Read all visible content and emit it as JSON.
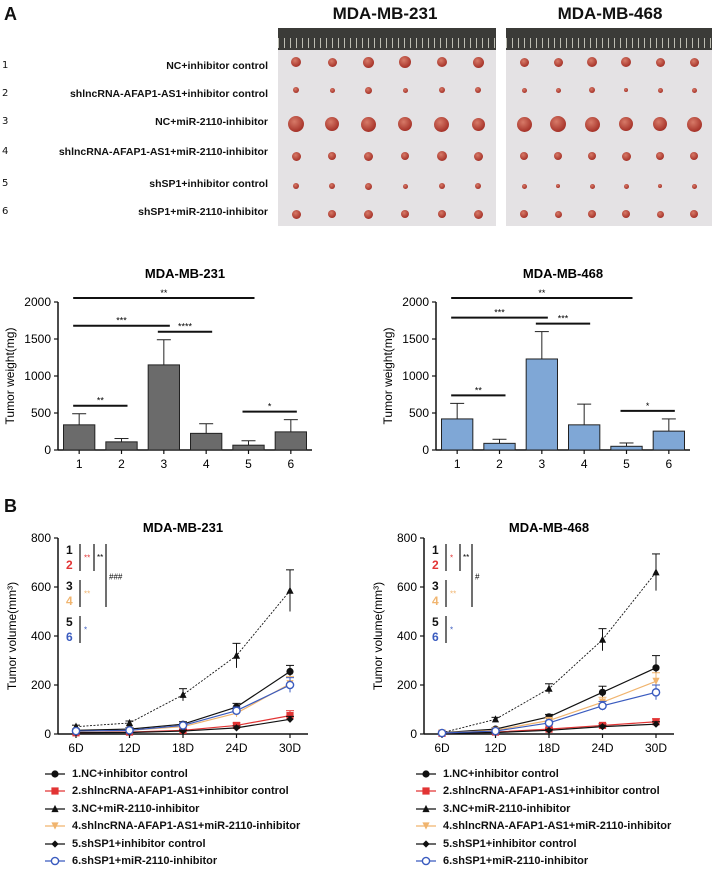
{
  "panel_a_label": "A",
  "panel_b_label": "B",
  "photos": {
    "mdamb231_title": "MDA-MB-231",
    "mdamb468_title": "MDA-MB-468"
  },
  "group_rows": [
    {
      "num": "1",
      "label": "NC+inhibitor control"
    },
    {
      "num": "2",
      "label": "shlncRNA-AFAP1-AS1+inhibitor control"
    },
    {
      "num": "3",
      "label": "NC+miR-2110-inhibitor"
    },
    {
      "num": "4",
      "label": "shlncRNA-AFAP1-AS1+miR-2110-inhibitor"
    },
    {
      "num": "5",
      "label": "shSP1+inhibitor control"
    },
    {
      "num": "6",
      "label": "shSP1+miR-2110-inhibitor"
    }
  ],
  "colors": {
    "bar_231": "#6b6b6b",
    "bar_468": "#7fa7d6",
    "series": [
      "#111111",
      "#e23434",
      "#111111",
      "#f0b46e",
      "#111111",
      "#3a5bbf"
    ]
  },
  "chart_data": [
    {
      "type": "bar",
      "title": "MDA-MB-231",
      "ylabel": "Tumor weight(mg)",
      "categories": [
        "1",
        "2",
        "3",
        "4",
        "5",
        "6"
      ],
      "values": [
        340,
        110,
        1150,
        225,
        65,
        245
      ],
      "errors": [
        150,
        45,
        340,
        130,
        60,
        165
      ],
      "ylim": [
        0,
        2000
      ],
      "yticks": [
        "0",
        "500",
        "1000",
        "1500",
        "2000"
      ],
      "annotations": [
        {
          "from": 1,
          "to": 2,
          "label": "**"
        },
        {
          "from": 1,
          "to": 3,
          "label": "***"
        },
        {
          "from": 3,
          "to": 4,
          "label": "****"
        },
        {
          "from": 5,
          "to": 6,
          "label": "*"
        },
        {
          "from": 1,
          "to": 5,
          "label": "**"
        }
      ]
    },
    {
      "type": "bar",
      "title": "MDA-MB-468",
      "ylabel": "Tumor weight(mg)",
      "categories": [
        "1",
        "2",
        "3",
        "4",
        "5",
        "6"
      ],
      "values": [
        420,
        90,
        1230,
        340,
        50,
        255
      ],
      "errors": [
        210,
        55,
        370,
        280,
        45,
        165
      ],
      "ylim": [
        0,
        2000
      ],
      "yticks": [
        "0",
        "500",
        "1000",
        "1500",
        "2000"
      ],
      "annotations": [
        {
          "from": 1,
          "to": 2,
          "label": "**"
        },
        {
          "from": 1,
          "to": 3,
          "label": "***"
        },
        {
          "from": 3,
          "to": 4,
          "label": "***"
        },
        {
          "from": 5,
          "to": 6,
          "label": "*"
        },
        {
          "from": 1,
          "to": 5,
          "label": "**"
        }
      ]
    },
    {
      "type": "line",
      "title": "MDA-MB-231",
      "ylabel": "Tumor volume(mm³)",
      "x": [
        "6D",
        "12D",
        "18D",
        "24D",
        "30D"
      ],
      "ylim": [
        0,
        800
      ],
      "yticks": [
        "0",
        "200",
        "400",
        "600",
        "800"
      ],
      "series": [
        {
          "name": "1.NC+inhibitor control",
          "values": [
            15,
            20,
            40,
            110,
            255
          ],
          "errors": [
            5,
            6,
            10,
            15,
            25
          ]
        },
        {
          "name": "2.shlncRNA-AFAP1-AS1+inhibitor control",
          "values": [
            5,
            8,
            15,
            35,
            75
          ],
          "errors": [
            3,
            3,
            5,
            10,
            20
          ]
        },
        {
          "name": "3.NC+miR-2110-inhibitor",
          "values": [
            30,
            45,
            160,
            320,
            585
          ],
          "errors": [
            6,
            8,
            25,
            50,
            85
          ]
        },
        {
          "name": "4.shlncRNA-AFAP1-AS1+miR-2110-inhibitor",
          "values": [
            10,
            15,
            30,
            85,
            205
          ],
          "errors": [
            4,
            5,
            8,
            15,
            30
          ]
        },
        {
          "name": "5.shSP1+inhibitor control",
          "values": [
            5,
            6,
            12,
            25,
            60
          ],
          "errors": [
            2,
            3,
            4,
            8,
            12
          ]
        },
        {
          "name": "6.shSP1+miR-2110-inhibitor",
          "values": [
            12,
            15,
            35,
            95,
            200
          ],
          "errors": [
            4,
            5,
            8,
            15,
            30
          ]
        }
      ],
      "markers": [
        "circle",
        "square",
        "triangle",
        "triangle-down",
        "diamond",
        "circle-open"
      ],
      "sig_groups": [
        "1",
        "2",
        "3",
        "4",
        "5",
        "6"
      ],
      "sig_labels": [
        "**",
        "**",
        "**",
        "*",
        "###"
      ]
    },
    {
      "type": "line",
      "title": "MDA-MB-468",
      "ylabel": "Tumor volume(mm³)",
      "x": [
        "6D",
        "12D",
        "18D",
        "24D",
        "30D"
      ],
      "ylim": [
        0,
        800
      ],
      "yticks": [
        "0",
        "200",
        "400",
        "600",
        "800"
      ],
      "series": [
        {
          "name": "1.NC+inhibitor control",
          "values": [
            5,
            20,
            70,
            170,
            270
          ],
          "errors": [
            3,
            5,
            10,
            25,
            50
          ]
        },
        {
          "name": "2.shlncRNA-AFAP1-AS1+inhibitor control",
          "values": [
            3,
            8,
            20,
            35,
            50
          ],
          "errors": [
            2,
            3,
            5,
            8,
            12
          ]
        },
        {
          "name": "3.NC+miR-2110-inhibitor",
          "values": [
            5,
            60,
            185,
            385,
            660
          ],
          "errors": [
            3,
            8,
            20,
            45,
            75
          ]
        },
        {
          "name": "4.shlncRNA-AFAP1-AS1+miR-2110-inhibitor",
          "values": [
            4,
            15,
            55,
            130,
            215
          ],
          "errors": [
            2,
            4,
            10,
            20,
            35
          ]
        },
        {
          "name": "5.shSP1+inhibitor control",
          "values": [
            3,
            6,
            15,
            30,
            40
          ],
          "errors": [
            2,
            3,
            4,
            6,
            10
          ]
        },
        {
          "name": "6.shSP1+miR-2110-inhibitor",
          "values": [
            4,
            12,
            45,
            115,
            170
          ],
          "errors": [
            2,
            4,
            8,
            18,
            30
          ]
        }
      ],
      "markers": [
        "circle",
        "square",
        "triangle",
        "triangle-down",
        "diamond",
        "circle-open"
      ],
      "sig_groups": [
        "1",
        "2",
        "3",
        "4",
        "5",
        "6"
      ],
      "sig_labels": [
        "*",
        "**",
        "*",
        "*",
        "#"
      ]
    }
  ],
  "legend_left": [
    "1.NC+inhibitor control",
    "2.shlncRNA-AFAP1-AS1+inhibitor control",
    "3.NC+miR-2110-inhibitor",
    "4.shlncRNA-AFAP1-AS1+miR-2110-inhibitor",
    "5.shSP1+inhibitor control",
    "6.shSP1+miR-2110-inhibitor"
  ],
  "legend_right": [
    "1.NC+inhibitor control",
    "2.shlncRNA-AFAP1-AS1+inhibitor control",
    "3.NC+miR-2110-inhibitor",
    "4.shlncRNA-AFAP1-AS1+miR-2110-inhibitor",
    "5.shSP1+inhibitor control",
    "6.shSP1+miR-2110-inhibitor"
  ]
}
